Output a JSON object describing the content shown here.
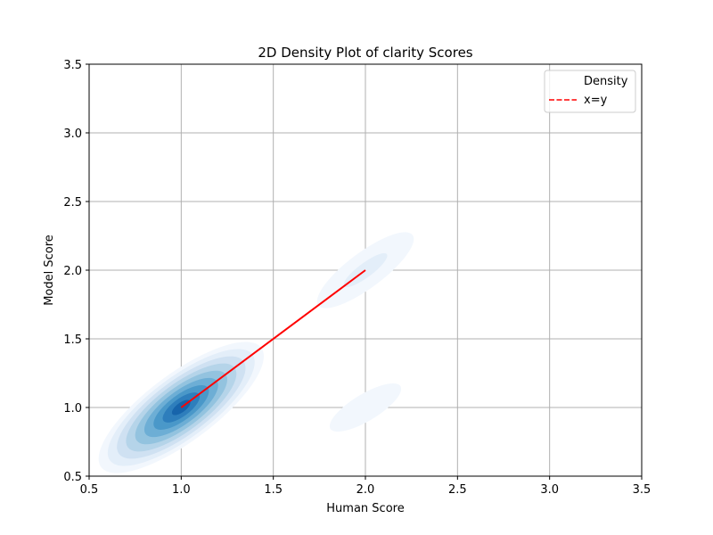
{
  "chart_data": {
    "type": "density",
    "title": "2D Density Plot of clarity Scores",
    "xlabel": "Human Score",
    "ylabel": "Model Score",
    "xlim": [
      0.5,
      3.5
    ],
    "ylim": [
      0.5,
      3.5
    ],
    "xticks": [
      "0.5",
      "1.0",
      "1.5",
      "2.0",
      "2.5",
      "3.0",
      "3.5"
    ],
    "yticks": [
      "0.5",
      "1.0",
      "1.5",
      "2.0",
      "2.5",
      "3.0",
      "3.5"
    ],
    "grid": true,
    "legend_position": "top-right",
    "legend": [
      {
        "label": "Density",
        "style": "none"
      },
      {
        "label": "x=y",
        "style": "dashed",
        "color": "#ff0000"
      }
    ],
    "density_peaks": [
      {
        "x": 1.0,
        "y": 1.0,
        "levels": 9,
        "weight": "high"
      },
      {
        "x": 2.0,
        "y": 2.0,
        "levels": 2,
        "weight": "low"
      },
      {
        "x": 2.0,
        "y": 1.0,
        "levels": 1,
        "weight": "low"
      }
    ],
    "reference_line": {
      "name": "x=y",
      "x": [
        1.0,
        2.0
      ],
      "y": [
        1.0,
        2.0
      ],
      "color": "#ff0000"
    },
    "palette": [
      "#f2f7fd",
      "#e3eef9",
      "#cfe1f2",
      "#b5d4e9",
      "#93c3df",
      "#6daed5",
      "#4a98c9",
      "#2e7ebc",
      "#1764ab",
      "#08468b"
    ]
  }
}
